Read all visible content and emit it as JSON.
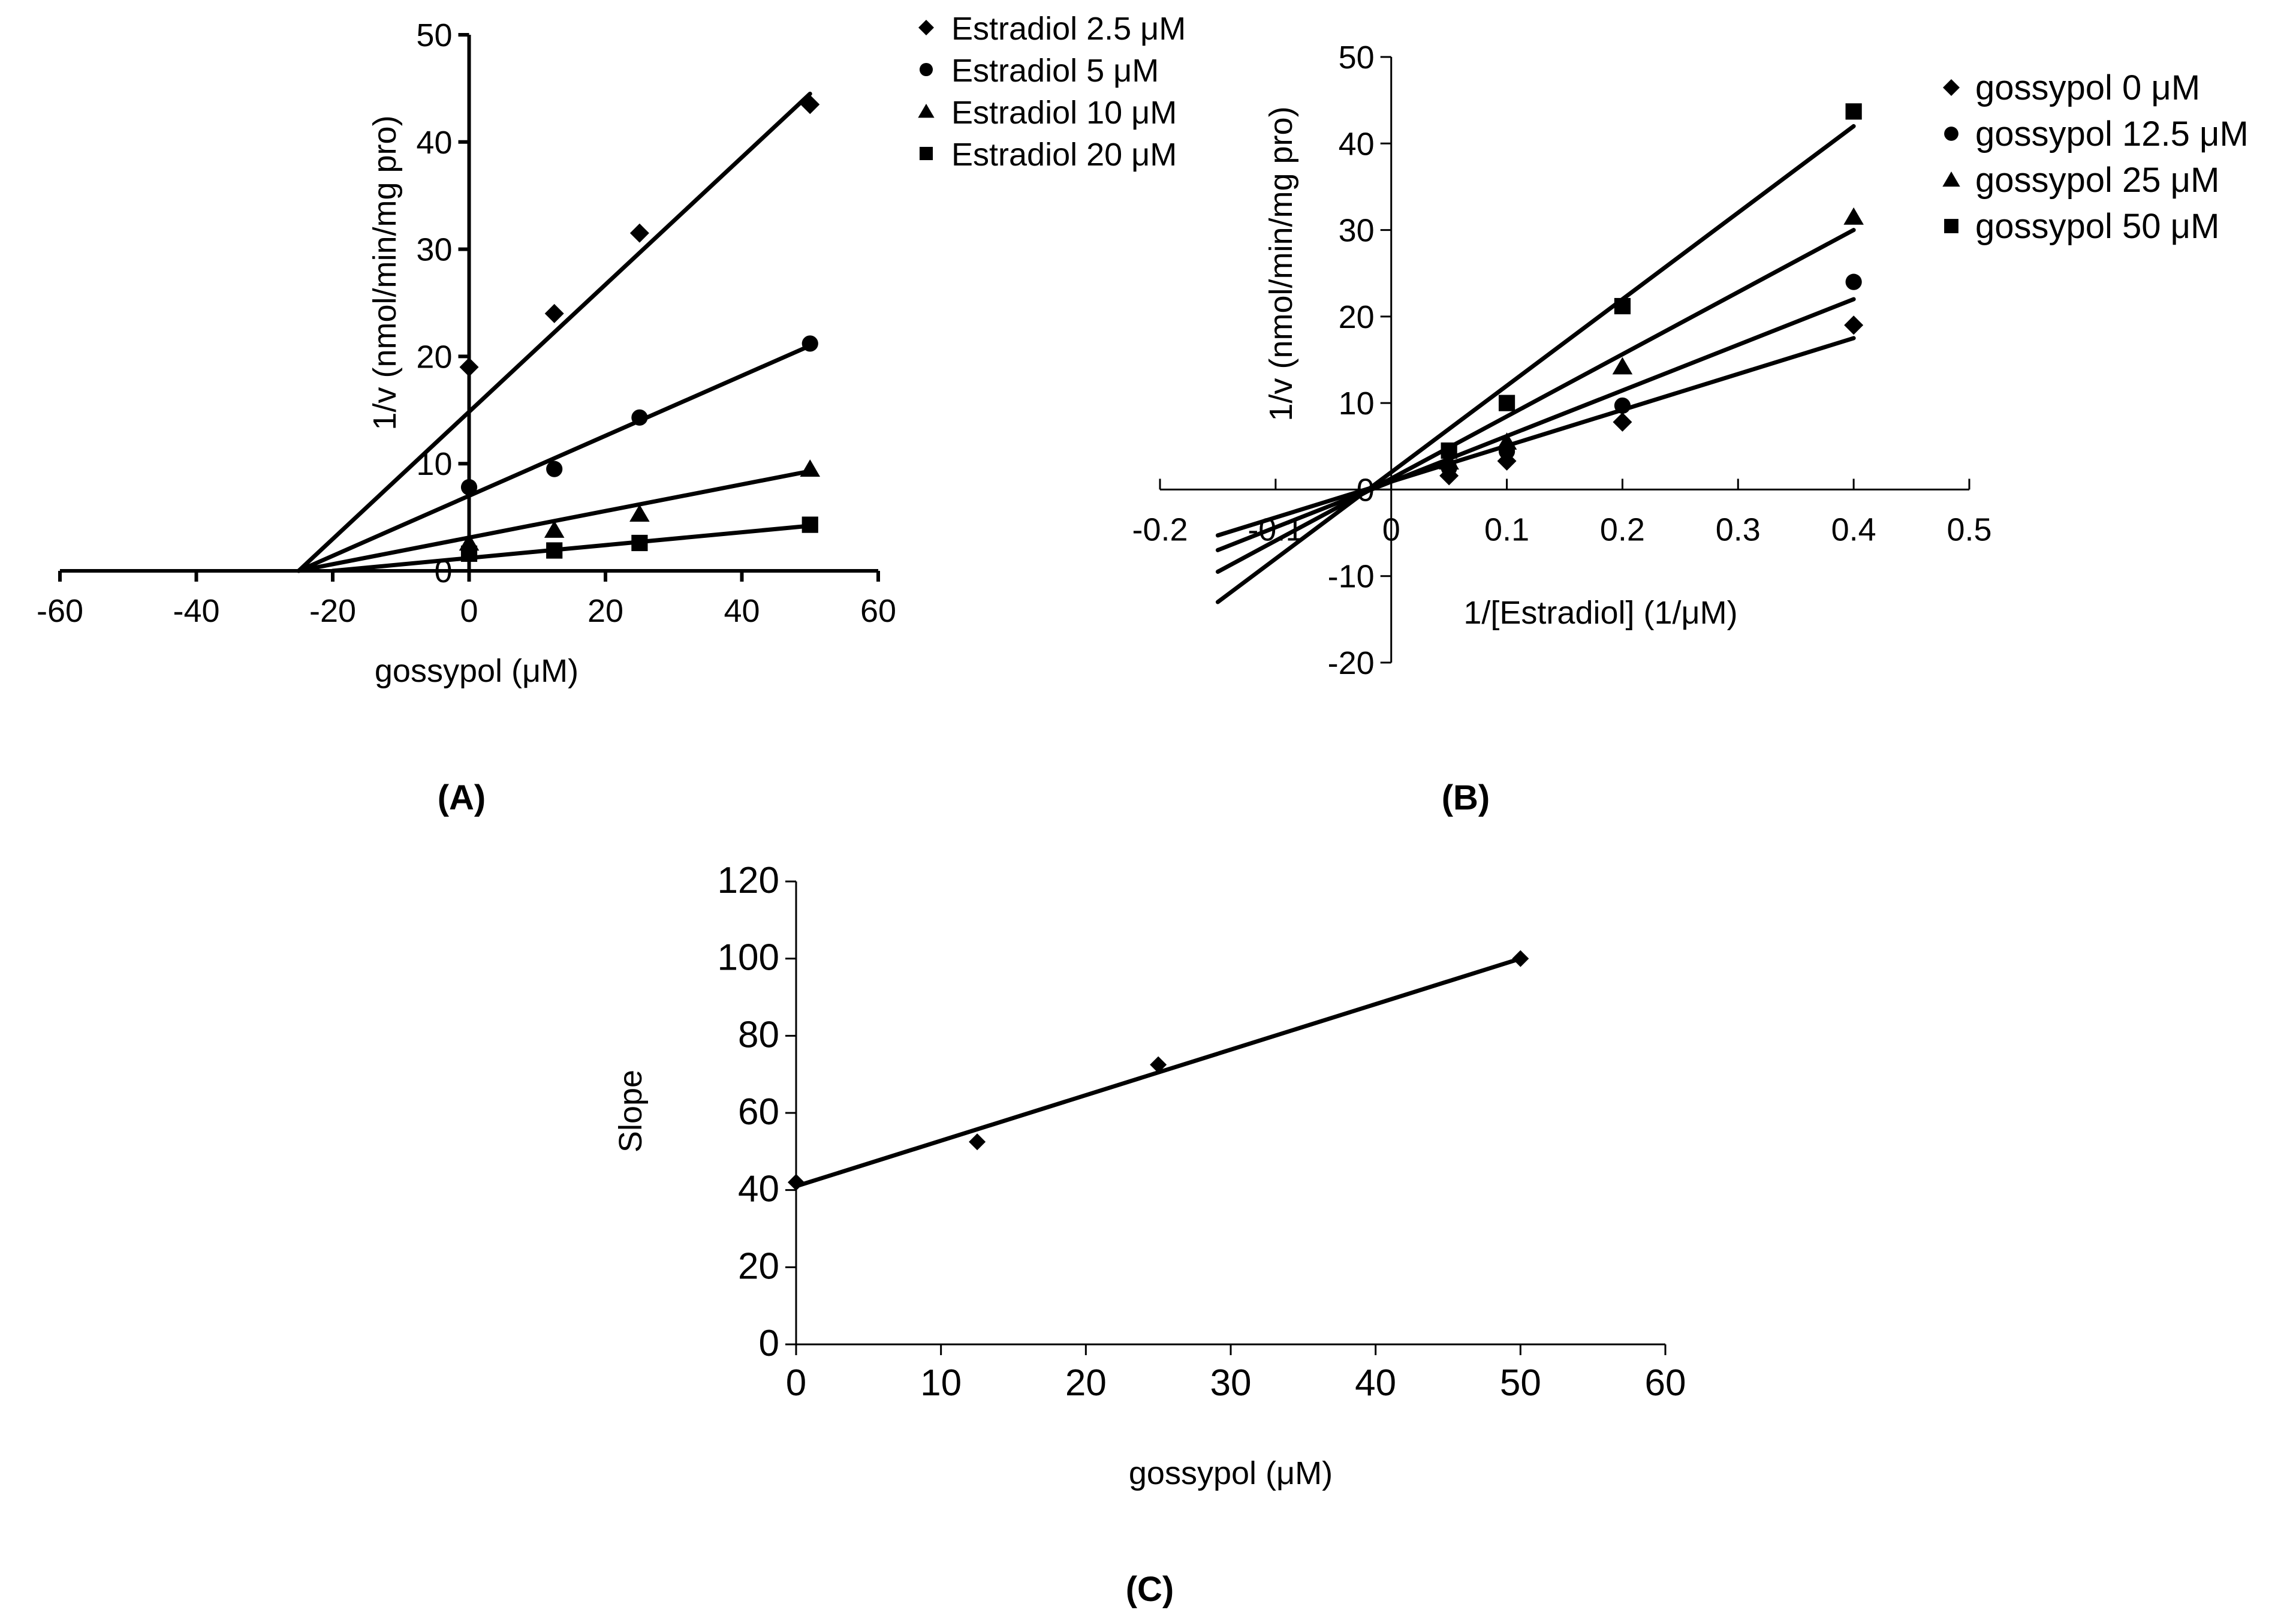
{
  "chart_data": [
    {
      "id": "A",
      "type": "scatter",
      "panel_label": "(A)",
      "xlabel": "gossypol (μM)",
      "ylabel": "1/v (nmol/min/mg pro)",
      "xlim": [
        -60,
        60
      ],
      "ylim": [
        0,
        50
      ],
      "xticks": [
        -60,
        -40,
        -20,
        0,
        20,
        40,
        60
      ],
      "yticks": [
        0,
        10,
        20,
        30,
        40,
        50
      ],
      "grid": false,
      "legend_position": "top-right",
      "series": [
        {
          "name": "Estradiol 2.5 μM",
          "marker": "diamond",
          "x": [
            0,
            12.5,
            25,
            50
          ],
          "y": [
            19,
            24,
            31.5,
            43.5
          ],
          "fit": [
            [
              -25,
              0
            ],
            [
              50,
              44.5
            ]
          ]
        },
        {
          "name": "Estradiol 5 μM",
          "marker": "circle",
          "x": [
            0,
            12.5,
            25,
            50
          ],
          "y": [
            7.8,
            9.5,
            14.3,
            21.2
          ],
          "fit": [
            [
              -25,
              0
            ],
            [
              50,
              21
            ]
          ]
        },
        {
          "name": "Estradiol 10 μM",
          "marker": "triangle",
          "x": [
            0,
            12.5,
            25,
            50
          ],
          "y": [
            2.6,
            3.8,
            5.3,
            9.5
          ],
          "fit": [
            [
              -25,
              0
            ],
            [
              50,
              9.3
            ]
          ]
        },
        {
          "name": "Estradiol 20 μM",
          "marker": "square",
          "x": [
            0,
            12.5,
            25,
            50
          ],
          "y": [
            1.6,
            1.9,
            2.6,
            4.3
          ],
          "fit": [
            [
              -20,
              0
            ],
            [
              50,
              4.2
            ]
          ]
        }
      ]
    },
    {
      "id": "B",
      "type": "scatter",
      "panel_label": "(B)",
      "xlabel": "1/[Estradiol] (1/μM)",
      "ylabel": "1/v (nmol/min/mg pro)",
      "xlim": [
        -0.2,
        0.5
      ],
      "ylim": [
        -20,
        50
      ],
      "xticks": [
        -0.2,
        -0.1,
        0,
        0.1,
        0.2,
        0.3,
        0.4,
        0.5
      ],
      "yticks": [
        -20,
        -10,
        0,
        10,
        20,
        30,
        40,
        50
      ],
      "grid": false,
      "legend_position": "top-right",
      "series": [
        {
          "name": "gossypol 0 μM",
          "marker": "diamond",
          "x": [
            0.05,
            0.1,
            0.2,
            0.4
          ],
          "y": [
            1.6,
            3.3,
            7.8,
            19
          ],
          "fit": [
            [
              -0.15,
              -5.3
            ],
            [
              0.4,
              17.5
            ]
          ]
        },
        {
          "name": "gossypol 12.5 μM",
          "marker": "circle",
          "x": [
            0.05,
            0.1,
            0.2,
            0.4
          ],
          "y": [
            2.5,
            4.4,
            9.7,
            24
          ],
          "fit": [
            [
              -0.15,
              -7
            ],
            [
              0.4,
              22
            ]
          ]
        },
        {
          "name": "gossypol 25 μM",
          "marker": "triangle",
          "x": [
            0.05,
            0.1,
            0.2,
            0.4
          ],
          "y": [
            3.2,
            5.5,
            14.2,
            31.5
          ],
          "fit": [
            [
              -0.15,
              -9.5
            ],
            [
              0.4,
              30
            ]
          ]
        },
        {
          "name": "gossypol 50 μM",
          "marker": "square",
          "x": [
            0.05,
            0.1,
            0.2,
            0.4
          ],
          "y": [
            4.5,
            10,
            21.2,
            43.7
          ],
          "fit": [
            [
              -0.15,
              -13
            ],
            [
              0.4,
              42
            ]
          ]
        }
      ]
    },
    {
      "id": "C",
      "type": "scatter",
      "panel_label": "(C)",
      "xlabel": "gossypol (μM)",
      "ylabel": "Slope",
      "xlim": [
        0,
        60
      ],
      "ylim": [
        0,
        120
      ],
      "xticks": [
        0,
        10,
        20,
        30,
        40,
        50,
        60
      ],
      "yticks": [
        0,
        20,
        40,
        60,
        80,
        100,
        120
      ],
      "grid": false,
      "series": [
        {
          "name": "Slope",
          "marker": "diamond",
          "x": [
            0,
            12.5,
            25,
            50
          ],
          "y": [
            42,
            52.5,
            72.5,
            100
          ],
          "fit": [
            [
              0,
              41
            ],
            [
              50,
              100
            ]
          ]
        }
      ]
    }
  ]
}
